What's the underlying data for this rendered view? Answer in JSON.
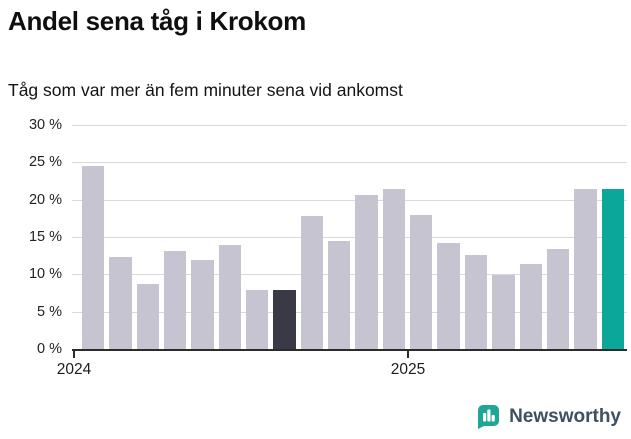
{
  "header": {
    "title": "Andel sena tåg i Krokom",
    "subtitle": "Tåg som var mer än fem minuter sena vid ankomst"
  },
  "chart_data": {
    "type": "bar",
    "title": "Andel sena tåg i Krokom",
    "subtitle": "Tåg som var mer än fem minuter sena vid ankomst",
    "unit": "%",
    "ylim": [
      0,
      30
    ],
    "ytick_step": 5,
    "ytick_labels": [
      "0 %",
      "5 %",
      "10 %",
      "15 %",
      "20 %",
      "25 %",
      "30 %"
    ],
    "grid": true,
    "legend": false,
    "categories": [
      "2024-01",
      "2024-02",
      "2024-03",
      "2024-04",
      "2024-05",
      "2024-06",
      "2024-07",
      "2024-08",
      "2024-09",
      "2024-10",
      "2024-11",
      "2024-12",
      "2025-01",
      "2025-02",
      "2025-03",
      "2025-04",
      "2025-05",
      "2025-06",
      "2025-07",
      "2025-08"
    ],
    "values": [
      24.7,
      12.4,
      8.9,
      13.2,
      12.0,
      14.1,
      8.0,
      8.1,
      18.0,
      14.6,
      20.8,
      21.6,
      18.1,
      14.3,
      12.7,
      10.1,
      11.5,
      13.5,
      21.6,
      21.5
    ],
    "xticks": [
      {
        "label": "2024",
        "index": 0
      },
      {
        "label": "2025",
        "index": 12
      }
    ],
    "colors": {
      "default": "#c7c4d2",
      "highlight_dark": "#3a3a47",
      "highlight_dark_index": 7,
      "highlight_accent": "#0aa79a",
      "highlight_accent_index": 19,
      "gridline": "#d9d9dd",
      "axis": "#2b2b2b"
    }
  },
  "footer": {
    "brand": "Newsworthy",
    "brand_text_color": "#3e5062",
    "logo_color": "#1fa795"
  }
}
